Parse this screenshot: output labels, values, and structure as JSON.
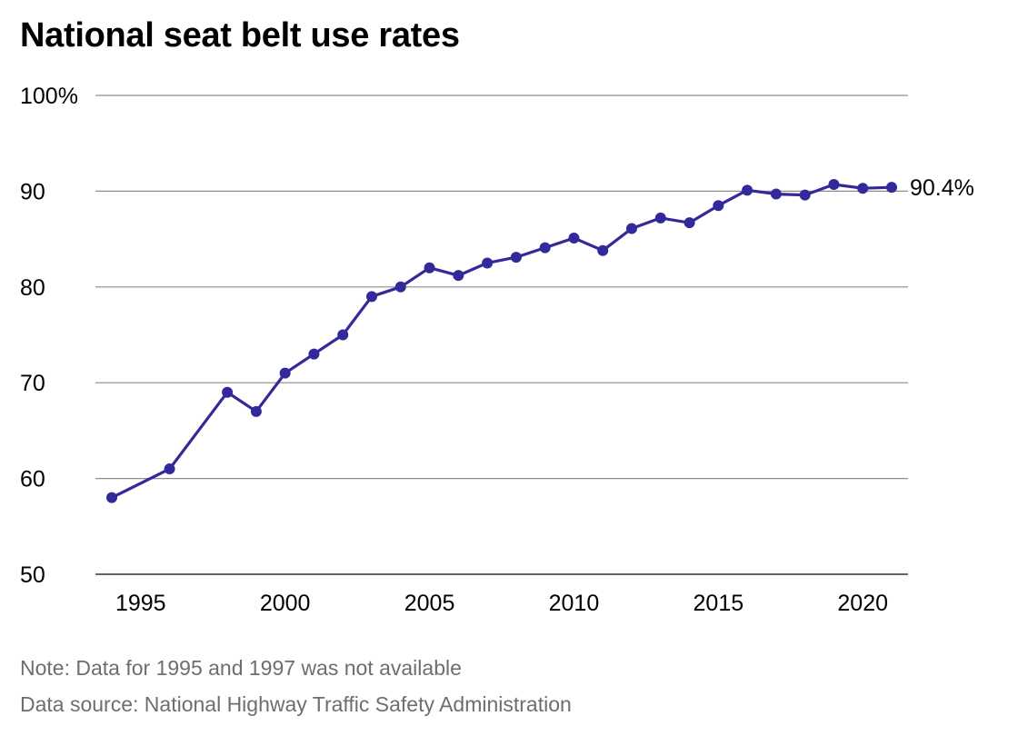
{
  "chart_data": {
    "type": "line",
    "title": "National seat belt use rates",
    "xlabel": "",
    "ylabel": "",
    "xlim": [
      1993.9,
      2022.2
    ],
    "ylim": [
      50,
      100
    ],
    "y_ticks": [
      50,
      60,
      70,
      80,
      90,
      100
    ],
    "y_tick_labels": [
      "50",
      "60",
      "70",
      "80",
      "90",
      "100%"
    ],
    "x_ticks": [
      1995,
      2000,
      2005,
      2010,
      2015,
      2020
    ],
    "x_tick_labels": [
      "1995",
      "2000",
      "2005",
      "2010",
      "2015",
      "2020"
    ],
    "grid": "horizontal",
    "legend": "none",
    "series": [
      {
        "color": "#33299a",
        "x": [
          1994,
          1996,
          1998,
          1999,
          2000,
          2001,
          2002,
          2003,
          2004,
          2005,
          2006,
          2007,
          2008,
          2009,
          2010,
          2011,
          2012,
          2013,
          2014,
          2015,
          2016,
          2017,
          2018,
          2019,
          2020,
          2021
        ],
        "y": [
          58,
          61,
          69,
          67,
          71,
          73,
          75,
          79,
          80,
          82,
          81.2,
          82.5,
          83.1,
          84.1,
          85.1,
          83.8,
          86.1,
          87.2,
          86.7,
          88.5,
          90.1,
          89.7,
          89.6,
          90.7,
          90.3,
          90.4
        ]
      }
    ],
    "end_label": "90.4%",
    "annotations": [
      "Note: Data for 1995 and 1997 was not available",
      "Data source: National Highway Traffic Safety Administration"
    ]
  }
}
